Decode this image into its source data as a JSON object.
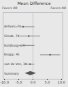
{
  "chart_data": {
    "type": "forest",
    "title": "Mean Difference",
    "annotations": [
      "Favors BB",
      "Favors NB"
    ],
    "categories": [
      "Ardvari, 70",
      "Simak, 74",
      "Goldburg, 69",
      "Knapp, 91",
      "van de Ven, 38",
      "Summary"
    ],
    "values": [
      -3.5,
      -1.5,
      -3.0,
      6.0,
      -1.0,
      -0.8
    ],
    "ci_low": [
      -7.5,
      -5.5,
      -6.5,
      2.5,
      -2.5,
      -2.8
    ],
    "ci_high": [
      0.5,
      2.5,
      0.5,
      9.5,
      0.5,
      1.2
    ],
    "summary_index": 5,
    "zero_line": 0,
    "colors": [
      "#666666",
      "#666666",
      "#666666",
      "#666666",
      "#666666",
      "#555555"
    ],
    "xlim": [
      -10.5,
      10.5
    ],
    "xticks": [
      {
        "value": -10.0,
        "label": "-10.0"
      },
      {
        "value": -5.0,
        "label": "-5.0"
      },
      {
        "value": 0.0,
        "label": "0.0"
      },
      {
        "value": 5.0,
        "label": "5.0"
      },
      {
        "value": 10.0,
        "label": "10.0"
      }
    ],
    "tick_labels": "x",
    "grid": false
  }
}
